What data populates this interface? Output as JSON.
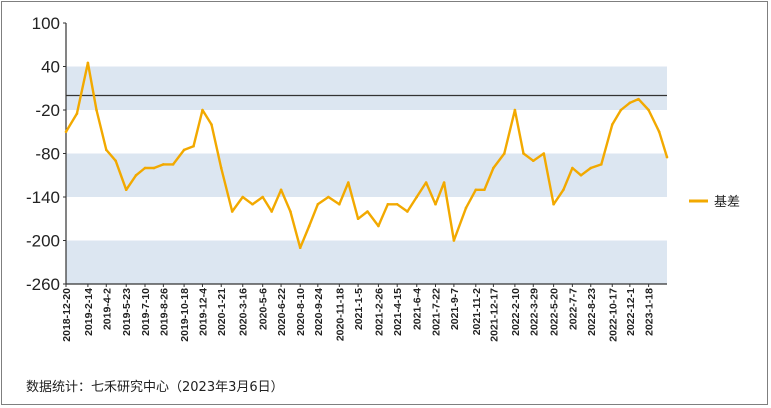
{
  "source_note": "数据统计：七禾研究中心（2023年3月6日）",
  "colors": {
    "line": "#f2a900",
    "band": "#dce6f1",
    "refline": "#333333",
    "axis": "#333333"
  },
  "chart_data": {
    "type": "line",
    "title": "",
    "xlabel": "",
    "ylabel": "",
    "ylim": [
      -260,
      100
    ],
    "y_ticks": [
      "100",
      "40",
      "-20",
      "-80",
      "-140",
      "-200",
      "-260"
    ],
    "x_ticks": [
      "2018-12-20",
      "2019-2-14",
      "2019-4-2",
      "2019-5-23",
      "2019-7-10",
      "2019-8-26",
      "2019-10-18",
      "2019-12-4",
      "2020-1-21",
      "2020-3-16",
      "2020-5-6",
      "2020-6-22",
      "2020-8-10",
      "2020-9-24",
      "2020-11-18",
      "2021-1-5",
      "2021-2-26",
      "2021-4-15",
      "2021-6-4",
      "2021-7-22",
      "2021-9-7",
      "2021-11-2",
      "2021-12-17",
      "2022-2-10",
      "2022-3-29",
      "2022-5-20",
      "2022-7-7",
      "2022-8-23",
      "2022-10-17",
      "2022-12-1",
      "2023-1-18"
    ],
    "reference_line": 0,
    "bands": [
      [
        -20,
        40
      ],
      [
        -140,
        -80
      ],
      [
        -260,
        -200
      ]
    ],
    "legend": "right",
    "series": [
      {
        "name": "基差",
        "x": [
          "2018-12-20",
          "2019-1-17",
          "2019-2-14",
          "2019-3-8",
          "2019-4-2",
          "2019-4-26",
          "2019-5-23",
          "2019-6-17",
          "2019-7-10",
          "2019-8-2",
          "2019-8-26",
          "2019-9-20",
          "2019-10-18",
          "2019-11-11",
          "2019-12-4",
          "2019-12-27",
          "2020-1-21",
          "2020-2-18",
          "2020-3-16",
          "2020-4-10",
          "2020-5-6",
          "2020-5-29",
          "2020-6-22",
          "2020-7-16",
          "2020-8-10",
          "2020-9-2",
          "2020-9-24",
          "2020-10-21",
          "2020-11-18",
          "2020-12-11",
          "2021-1-5",
          "2021-1-29",
          "2021-2-26",
          "2021-3-22",
          "2021-4-15",
          "2021-5-11",
          "2021-6-4",
          "2021-6-28",
          "2021-7-22",
          "2021-8-13",
          "2021-9-7",
          "2021-10-8",
          "2021-11-2",
          "2021-11-24",
          "2021-12-17",
          "2022-1-14",
          "2022-2-10",
          "2022-3-4",
          "2022-3-29",
          "2022-4-25",
          "2022-5-20",
          "2022-6-14",
          "2022-7-7",
          "2022-7-29",
          "2022-8-23",
          "2022-9-19",
          "2022-10-17",
          "2022-11-8",
          "2022-12-1",
          "2022-12-23",
          "2023-1-18",
          "2023-2-14",
          "2023-3-6"
        ],
        "values": [
          -50,
          -25,
          45,
          -20,
          -75,
          -90,
          -130,
          -110,
          -100,
          -100,
          -95,
          -95,
          -75,
          -70,
          -20,
          -40,
          -100,
          -160,
          -140,
          -150,
          -140,
          -160,
          -130,
          -160,
          -210,
          -180,
          -150,
          -140,
          -150,
          -120,
          -170,
          -160,
          -180,
          -150,
          -150,
          -160,
          -140,
          -120,
          -150,
          -120,
          -200,
          -155,
          -130,
          -130,
          -100,
          -80,
          -20,
          -80,
          -90,
          -80,
          -150,
          -130,
          -100,
          -110,
          -100,
          -95,
          -40,
          -20,
          -10,
          -5,
          -20,
          -50,
          -85
        ]
      }
    ]
  }
}
